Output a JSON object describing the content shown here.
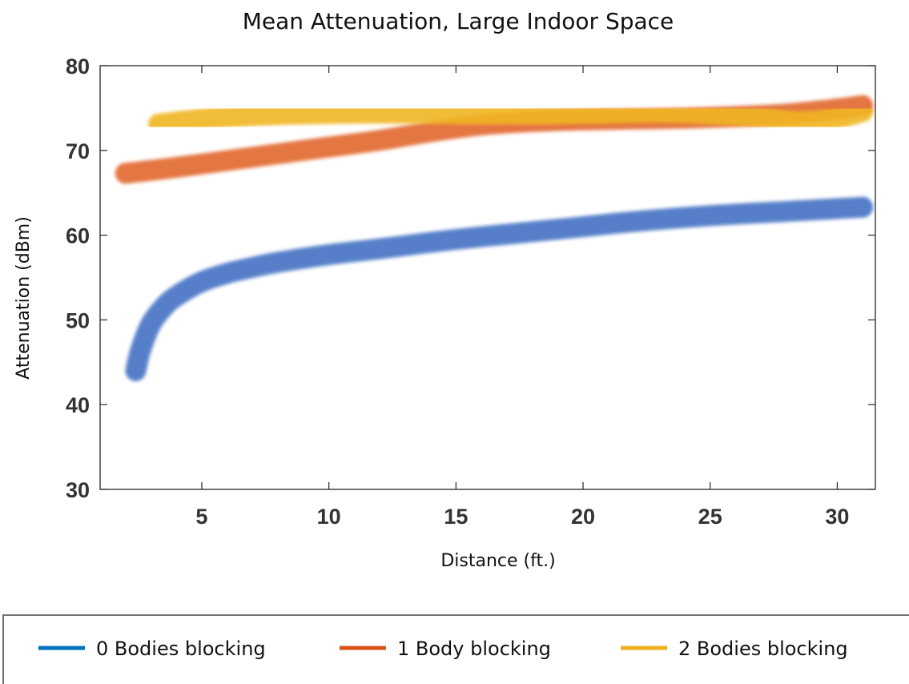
{
  "chart_data": {
    "type": "line",
    "title": "Mean Attenuation, Large Indoor Space",
    "xlabel": "Distance (ft.)",
    "ylabel": "Attenuation (dBm)",
    "xlim": [
      1,
      31.5
    ],
    "ylim": [
      30,
      80
    ],
    "xticks": [
      5,
      10,
      15,
      20,
      25,
      30
    ],
    "yticks": [
      30,
      40,
      50,
      60,
      70,
      80
    ],
    "grid": false,
    "legend_position": "bottom",
    "series": [
      {
        "name": "0 Bodies blocking",
        "color": "#4472C4",
        "legend_color": "#0072BD",
        "x": [
          2.4,
          2.6,
          3,
          3.5,
          4,
          5,
          6,
          7,
          8,
          10,
          12,
          15,
          18,
          20,
          22,
          25,
          28,
          31
        ],
        "y": [
          44,
          46.5,
          49.5,
          51.5,
          52.8,
          54.5,
          55.5,
          56.2,
          56.8,
          57.7,
          58.4,
          59.5,
          60.4,
          61,
          61.6,
          62.3,
          62.8,
          63.3
        ]
      },
      {
        "name": "1 Body blocking",
        "color": "#E2672D",
        "legend_color": "#D95319",
        "x": [
          2,
          4,
          6,
          8,
          10,
          12,
          14,
          16,
          18,
          20,
          22,
          24,
          26,
          28,
          30,
          31
        ],
        "y": [
          67.3,
          68,
          68.8,
          69.6,
          70.4,
          71.2,
          72.2,
          73,
          73.4,
          73.6,
          73.7,
          73.8,
          74,
          74.3,
          74.9,
          75.3
        ]
      },
      {
        "name": "2 Bodies blocking",
        "color": "#F0B523",
        "legend_color": "#EDB120",
        "x": [
          3.3,
          5,
          7,
          9,
          11,
          13,
          15,
          17,
          19,
          21,
          23,
          25,
          27,
          28.5,
          30,
          31
        ],
        "y": [
          73.1,
          73.7,
          74.1,
          74.3,
          74.4,
          74.4,
          74.3,
          74.3,
          74.3,
          74.4,
          74.5,
          74.3,
          73.9,
          73.4,
          73.8,
          74.6
        ]
      }
    ]
  }
}
